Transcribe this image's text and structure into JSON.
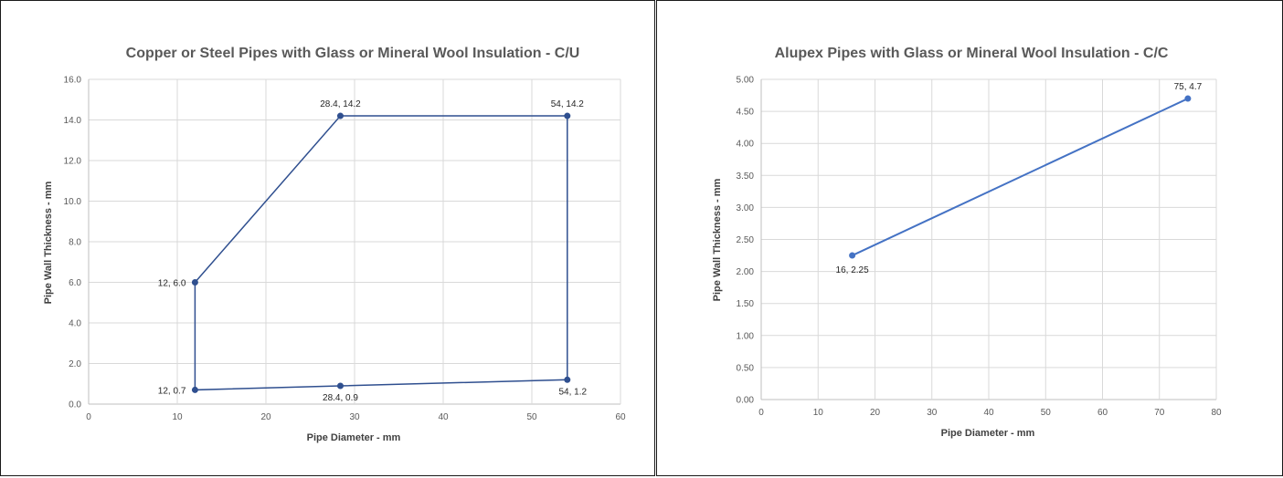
{
  "charts": [
    {
      "title": "Copper or Steel Pipes with Glass or Mineral Wool Insulation - C/U",
      "xlabel": "Pipe Diameter - mm",
      "ylabel": "Pipe Wall Thickness - mm",
      "xticks": [
        "0",
        "10",
        "20",
        "30",
        "40",
        "50",
        "60"
      ],
      "yticks": [
        "0.0",
        "2.0",
        "4.0",
        "6.0",
        "8.0",
        "10.0",
        "12.0",
        "14.0",
        "16.0"
      ],
      "labels": [
        "28.4, 14.2",
        "54, 14.2",
        "12, 6.0",
        "12, 0.7",
        "28.4, 0.9",
        "54, 1.2"
      ]
    },
    {
      "title": "Alupex Pipes with Glass or Mineral Wool Insulation - C/C",
      "xlabel": "Pipe Diameter - mm",
      "ylabel": "Pipe Wall Thickness - mm",
      "xticks": [
        "0",
        "10",
        "20",
        "30",
        "40",
        "50",
        "60",
        "70",
        "80"
      ],
      "yticks": [
        "0.00",
        "0.50",
        "1.00",
        "1.50",
        "2.00",
        "2.50",
        "3.00",
        "3.50",
        "4.00",
        "4.50",
        "5.00"
      ],
      "labels": [
        "16, 2.25",
        "75, 4.7"
      ]
    }
  ],
  "chart_data": [
    {
      "type": "scatter",
      "title": "Copper or Steel Pipes with Glass or Mineral Wool Insulation - C/U",
      "xlabel": "Pipe Diameter - mm",
      "ylabel": "Pipe Wall Thickness - mm",
      "xlim": [
        0,
        60
      ],
      "ylim": [
        0,
        16
      ],
      "grid": true,
      "series": [
        {
          "x": [
            12,
            28.4,
            54,
            54,
            28.4,
            12,
            12
          ],
          "y": [
            6.0,
            14.2,
            14.2,
            1.2,
            0.9,
            0.7,
            6.0
          ],
          "color": "#2f4f8f",
          "lines": true
        }
      ]
    },
    {
      "type": "scatter",
      "title": "Alupex Pipes with Glass or Mineral Wool Insulation - C/C",
      "xlabel": "Pipe Diameter - mm",
      "ylabel": "Pipe Wall Thickness - mm",
      "xlim": [
        0,
        80
      ],
      "ylim": [
        0,
        5
      ],
      "grid": true,
      "series": [
        {
          "x": [
            16,
            75
          ],
          "y": [
            2.25,
            4.7
          ],
          "color": "#4472c4",
          "lines": true
        }
      ]
    }
  ]
}
